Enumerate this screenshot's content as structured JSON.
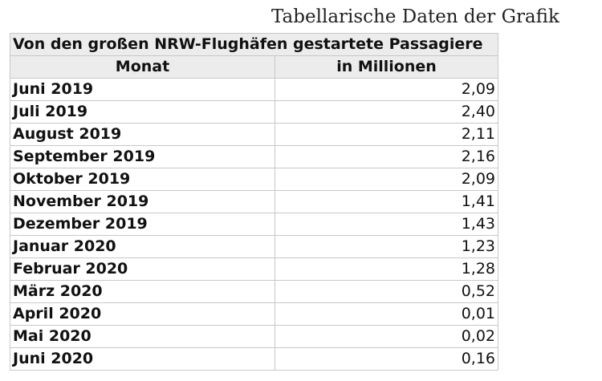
{
  "heading": "Tabellarische Daten der Grafik",
  "table": {
    "caption": "Von den großen NRW-Flughäfen gestartete Passagiere",
    "col_month": "Monat",
    "col_value": "in Millionen",
    "rows": [
      {
        "month": "Juni 2019",
        "value": "2,09"
      },
      {
        "month": "Juli 2019",
        "value": "2,40"
      },
      {
        "month": "August 2019",
        "value": "2,11"
      },
      {
        "month": "September 2019",
        "value": "2,16"
      },
      {
        "month": "Oktober 2019",
        "value": "2,09"
      },
      {
        "month": "November 2019",
        "value": "1,41"
      },
      {
        "month": "Dezember 2019",
        "value": "1,43"
      },
      {
        "month": "Januar 2020",
        "value": "1,23"
      },
      {
        "month": "Februar 2020",
        "value": "1,28"
      },
      {
        "month": "März 2020",
        "value": "0,52"
      },
      {
        "month": "April 2020",
        "value": "0,01"
      },
      {
        "month": "Mai 2020",
        "value": "0,02"
      },
      {
        "month": "Juni 2020",
        "value": "0,16"
      }
    ]
  }
}
